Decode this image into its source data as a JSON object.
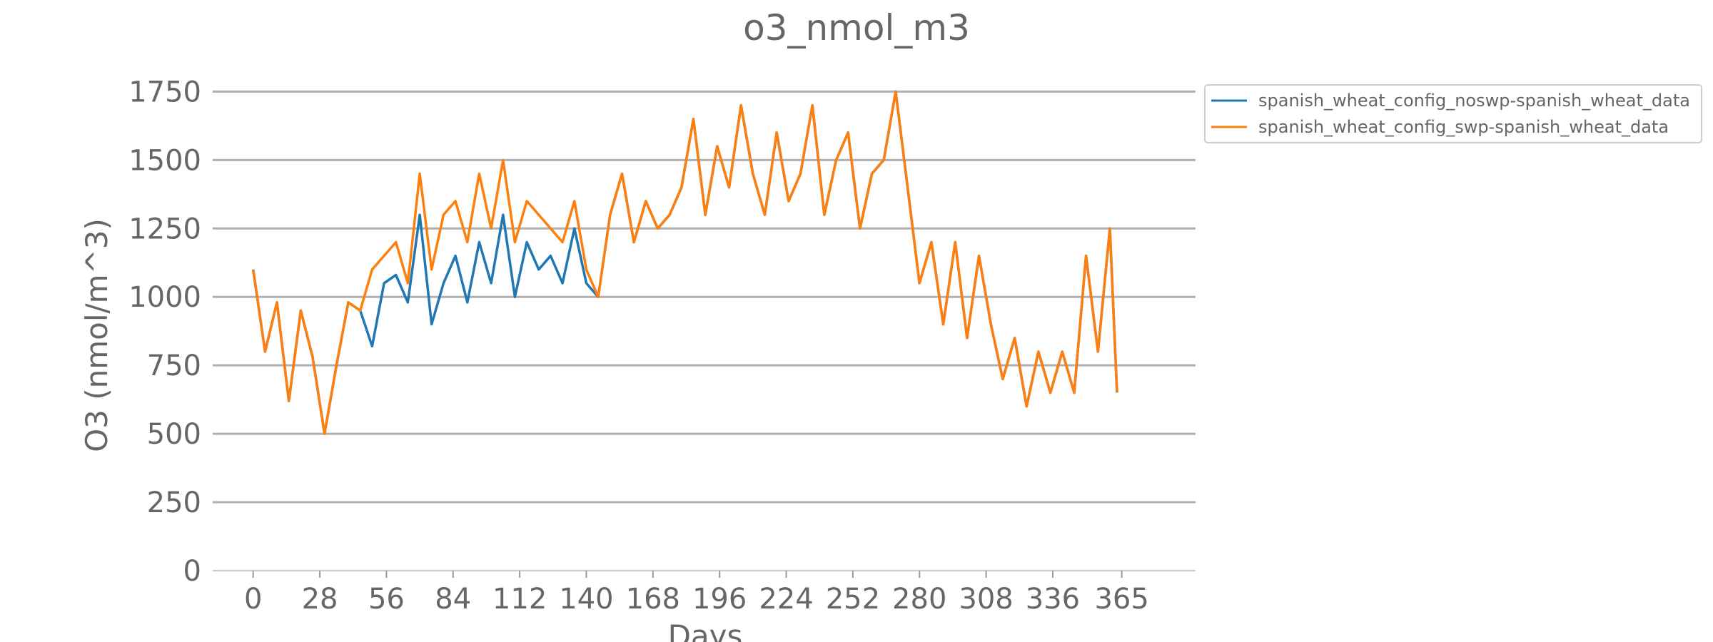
{
  "chart_data": {
    "type": "line",
    "title": "o3_nmol_m3",
    "xlabel": "Days",
    "ylabel": "O3 (nmol/m^3)",
    "xlim": [
      -17,
      396
    ],
    "ylim": [
      0,
      1850
    ],
    "xticks": [
      0,
      28,
      56,
      84,
      112,
      140,
      168,
      196,
      224,
      252,
      280,
      308,
      336,
      365
    ],
    "yticks": [
      0,
      250,
      500,
      750,
      1000,
      1250,
      1500,
      1750
    ],
    "grid": "horizontal",
    "legend": "outside-top-right",
    "x": [
      0,
      5,
      10,
      15,
      20,
      25,
      30,
      35,
      40,
      45,
      50,
      55,
      60,
      65,
      70,
      75,
      80,
      85,
      90,
      95,
      100,
      105,
      110,
      115,
      120,
      125,
      130,
      135,
      140,
      145,
      150,
      155,
      160,
      165,
      170,
      175,
      180,
      185,
      190,
      195,
      200,
      205,
      210,
      215,
      220,
      225,
      230,
      235,
      240,
      245,
      250,
      255,
      260,
      265,
      270,
      275,
      280,
      285,
      290,
      295,
      300,
      305,
      310,
      315,
      320,
      325,
      330,
      335,
      340,
      345,
      350,
      355,
      360,
      363
    ],
    "series": [
      {
        "name": "spanish_wheat_config_noswp-spanish_wheat_data",
        "color": "#1f77b4",
        "values": [
          1100,
          800,
          980,
          620,
          950,
          780,
          500,
          750,
          980,
          950,
          820,
          1050,
          1080,
          980,
          1300,
          900,
          1050,
          1150,
          980,
          1200,
          1050,
          1300,
          1000,
          1200,
          1100,
          1150,
          1050,
          1250,
          1050,
          1000,
          1300,
          1450,
          1200,
          1350,
          1250,
          1300,
          1400,
          1650,
          1300,
          1550,
          1400,
          1700,
          1450,
          1300,
          1600,
          1350,
          1450,
          1700,
          1300,
          1500,
          1600,
          1250,
          1450,
          1500,
          1750,
          1400,
          1050,
          1200,
          900,
          1200,
          850,
          1150,
          900,
          700,
          850,
          600,
          800,
          650,
          800,
          650,
          1150,
          800,
          1250,
          650
        ]
      },
      {
        "name": "spanish_wheat_config_swp-spanish_wheat_data",
        "color": "#ff7f0e",
        "values": [
          1100,
          800,
          980,
          620,
          950,
          780,
          500,
          750,
          980,
          950,
          1100,
          1150,
          1200,
          1050,
          1450,
          1100,
          1300,
          1350,
          1200,
          1450,
          1250,
          1500,
          1200,
          1350,
          1300,
          1250,
          1200,
          1350,
          1100,
          1000,
          1300,
          1450,
          1200,
          1350,
          1250,
          1300,
          1400,
          1650,
          1300,
          1550,
          1400,
          1700,
          1450,
          1300,
          1600,
          1350,
          1450,
          1700,
          1300,
          1500,
          1600,
          1250,
          1450,
          1500,
          1750,
          1400,
          1050,
          1200,
          900,
          1200,
          850,
          1150,
          900,
          700,
          850,
          600,
          800,
          650,
          800,
          650,
          1150,
          800,
          1250,
          650
        ]
      }
    ]
  }
}
